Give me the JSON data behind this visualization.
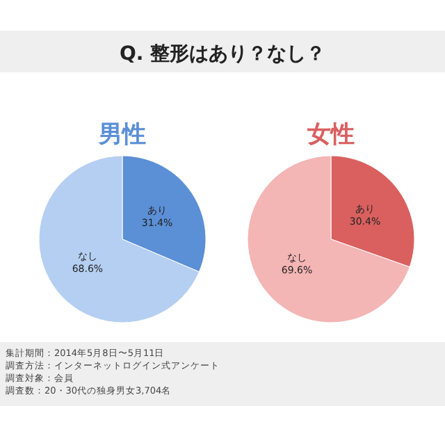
{
  "chart_data": [
    {
      "type": "other",
      "title": "Q. 整形はあり？なし？",
      "annotations": [
        "集計期間：2014年5月8日〜5月11日",
        "調査方法：インターネットログイン式アンケート",
        "調査対象：会員",
        "調査数：20・30代の独身男女3,704名"
      ]
    },
    {
      "type": "pie",
      "title": "男性",
      "categories": [
        "あり",
        "なし"
      ],
      "values": [
        31.4,
        68.6
      ],
      "value_labels": [
        "31.4%",
        "68.6%"
      ],
      "colors": [
        "#5b8fd6",
        "#b5cff2"
      ]
    },
    {
      "type": "pie",
      "title": "女性",
      "categories": [
        "あり",
        "なし"
      ],
      "values": [
        30.4,
        69.6
      ],
      "value_labels": [
        "30.4%",
        "69.6%"
      ],
      "colors": [
        "#d9605f",
        "#f4b5b5"
      ]
    }
  ]
}
